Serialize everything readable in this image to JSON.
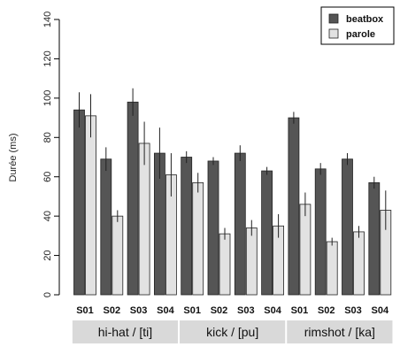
{
  "chart_data": {
    "type": "bar",
    "ylabel": "Durée (ms)",
    "ylim": [
      0,
      140
    ],
    "yticks": [
      0,
      20,
      40,
      60,
      80,
      100,
      120,
      140
    ],
    "categories": [
      "S01",
      "S02",
      "S03",
      "S04",
      "S01",
      "S02",
      "S03",
      "S04",
      "S01",
      "S02",
      "S03",
      "S04"
    ],
    "groups": [
      {
        "label": "hi-hat / [ti]",
        "start": 0,
        "end": 3
      },
      {
        "label": "kick / [pu]",
        "start": 4,
        "end": 7
      },
      {
        "label": "rimshot / [ka]",
        "start": 8,
        "end": 11
      }
    ],
    "series": [
      {
        "name": "beatbox",
        "color": "#555555",
        "values": [
          94,
          69,
          98,
          72,
          70,
          68,
          72,
          63,
          90,
          64,
          69,
          57
        ],
        "errors": [
          9,
          6,
          7,
          13,
          3,
          2,
          4,
          2,
          3,
          3,
          3,
          3
        ]
      },
      {
        "name": "parole",
        "color": "#e2e2e2",
        "values": [
          91,
          40,
          77,
          61,
          57,
          31,
          34,
          35,
          46,
          27,
          32,
          43
        ],
        "errors": [
          11,
          3,
          11,
          11,
          5,
          3,
          4,
          6,
          6,
          2,
          3,
          10
        ]
      }
    ],
    "legend_position": "top-right",
    "grid": false
  }
}
